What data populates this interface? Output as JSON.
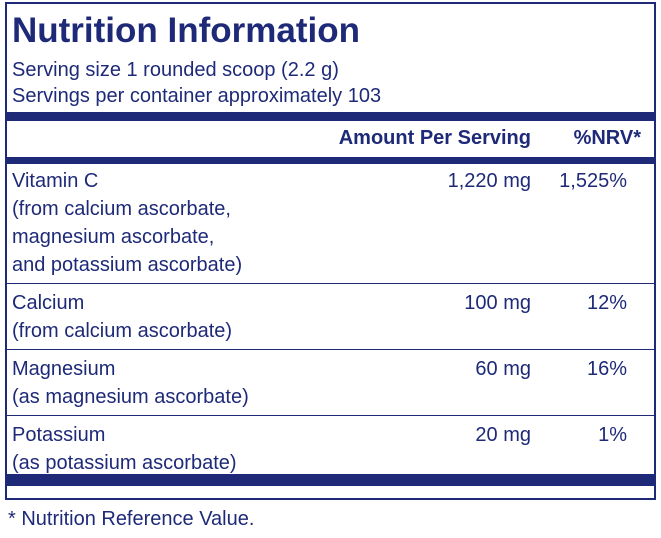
{
  "header": {
    "title": "Nutrition Information",
    "serving_size": "Serving size  1 rounded scoop (2.2 g)",
    "servings_per_container": "Servings per container  approximately 103"
  },
  "table": {
    "columns": [
      "Amount Per Serving",
      "%NRV*"
    ],
    "rows": [
      {
        "lines": [
          "Vitamin C",
          "(from calcium ascorbate,",
          "magnesium ascorbate,",
          "and potassium ascorbate)"
        ],
        "amount": "1,220 mg",
        "nrv": "1,525%"
      },
      {
        "lines": [
          "Calcium",
          "(from calcium ascorbate)"
        ],
        "amount": "100 mg",
        "nrv": "12%"
      },
      {
        "lines": [
          "Magnesium",
          "(as magnesium ascorbate)"
        ],
        "amount": "60 mg",
        "nrv": "16%"
      },
      {
        "lines": [
          "Potassium",
          "(as potassium ascorbate)"
        ],
        "amount": "20 mg",
        "nrv": "1%"
      }
    ]
  },
  "footnote": "* Nutrition Reference Value."
}
